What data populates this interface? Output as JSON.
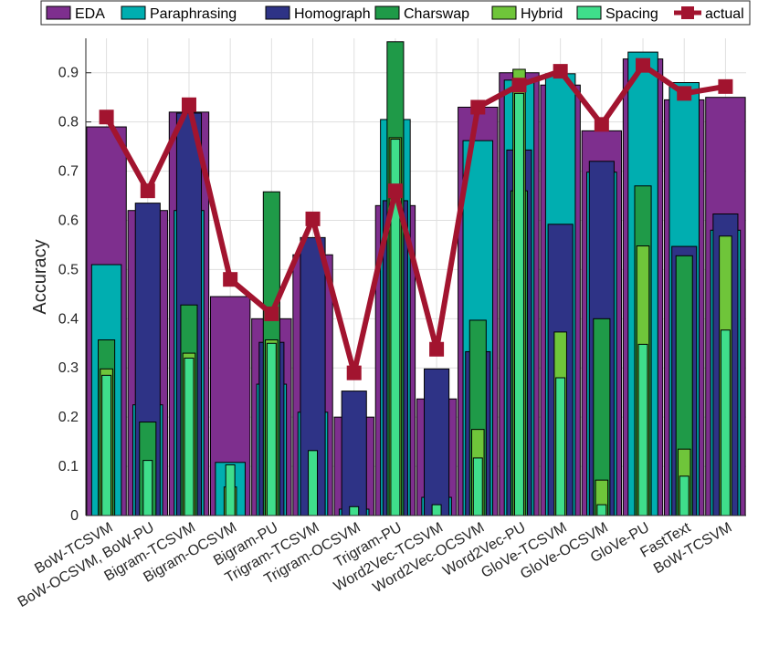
{
  "chart_data": {
    "type": "bar",
    "ylabel": "Accuracy",
    "xlabel": "",
    "ylim": [
      0,
      0.97
    ],
    "yticks": [
      "0",
      "0.1",
      "0.2",
      "0.3",
      "0.4",
      "0.5",
      "0.6",
      "0.7",
      "0.8",
      "0.9"
    ],
    "grid": true,
    "legend_position": "top",
    "categories": [
      "BoW-TCSVM",
      "BoW-OCSVM, BoW-PU",
      "Bigram-TCSVM",
      "Bigram-OCSVM",
      "Bigram-PU",
      "Trigram-TCSVM",
      "Trigram-OCSVM",
      "Trigram-PU",
      "Word2Vec-TCSVM",
      "Word2Vec-OCSVM",
      "Word2Vec-PU",
      "GloVe-TCSVM",
      "GloVe-OCSVM",
      "GloVe-PU",
      "FastText",
      "BoW-TCSVM"
    ],
    "series": [
      {
        "name": "EDA",
        "color": "#7E2F8E",
        "values": [
          0.79,
          0.62,
          0.82,
          0.445,
          0.4,
          0.53,
          0.2,
          0.63,
          0.237,
          0.83,
          0.9,
          0.875,
          0.782,
          0.928,
          0.845,
          0.85
        ]
      },
      {
        "name": "Paraphrasing",
        "color": "#00AEB0",
        "values": [
          0.51,
          0.225,
          0.62,
          0.108,
          0.267,
          0.21,
          0.013,
          0.805,
          0.037,
          0.762,
          0.885,
          0.898,
          0.698,
          0.942,
          0.88,
          0.58
        ]
      },
      {
        "name": "Homograph",
        "color": "#2E3386",
        "values": [
          0.0,
          0.635,
          0.818,
          0.0,
          0.352,
          0.565,
          0.253,
          0.64,
          0.298,
          0.333,
          0.743,
          0.592,
          0.72,
          0.0,
          0.547,
          0.613
        ]
      },
      {
        "name": "Charswap",
        "color": "#1F9A48",
        "values": [
          0.357,
          0.19,
          0.428,
          0.0,
          0.658,
          0.0,
          0.0,
          0.963,
          0.0,
          0.397,
          0.66,
          0.0,
          0.4,
          0.67,
          0.528,
          0.0
        ]
      },
      {
        "name": "Hybrid",
        "color": "#6FC53A",
        "values": [
          0.298,
          0.0,
          0.33,
          0.058,
          0.357,
          0.0,
          0.0,
          0.768,
          0.0,
          0.175,
          0.907,
          0.373,
          0.072,
          0.548,
          0.135,
          0.568
        ]
      },
      {
        "name": "Spacing",
        "color": "#3FDE8B",
        "values": [
          0.285,
          0.112,
          0.32,
          0.103,
          0.35,
          0.132,
          0.018,
          0.765,
          0.022,
          0.117,
          0.858,
          0.28,
          0.022,
          0.348,
          0.08,
          0.377
        ]
      }
    ],
    "line": {
      "name": "actual",
      "color": "#A2142F",
      "values": [
        0.81,
        0.66,
        0.835,
        0.48,
        0.41,
        0.603,
        0.29,
        0.66,
        0.338,
        0.83,
        0.875,
        0.903,
        0.795,
        0.915,
        0.858,
        0.872
      ]
    }
  }
}
